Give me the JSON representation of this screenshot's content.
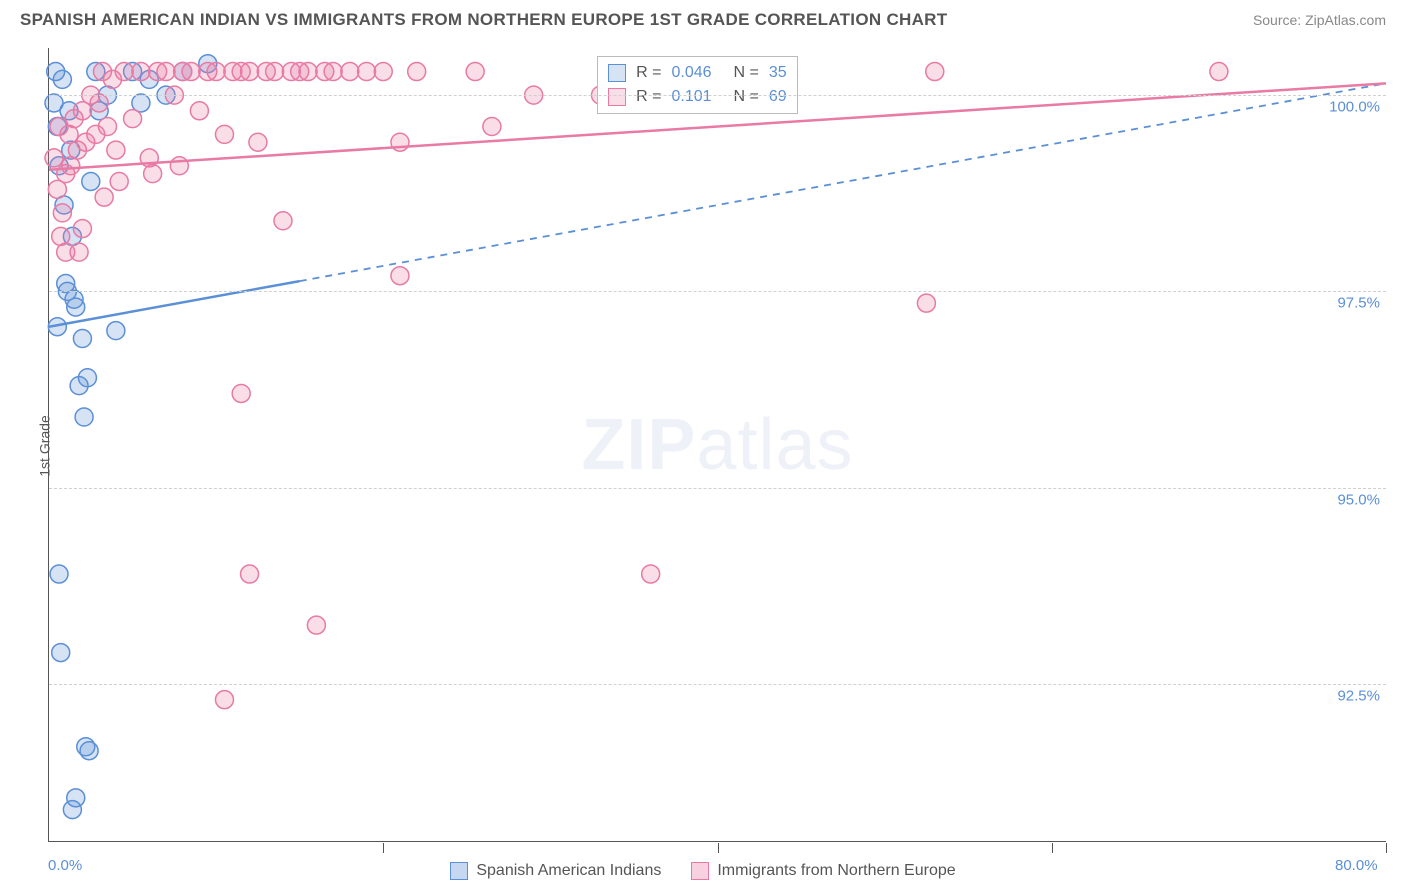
{
  "header": {
    "title": "SPANISH AMERICAN INDIAN VS IMMIGRANTS FROM NORTHERN EUROPE 1ST GRADE CORRELATION CHART",
    "source": "Source: ZipAtlas.com"
  },
  "chart": {
    "type": "scatter",
    "ylabel": "1st Grade",
    "watermark_bold": "ZIP",
    "watermark_rest": "atlas",
    "x": {
      "min": 0,
      "max": 80,
      "ticks": [
        0,
        20,
        40,
        60,
        80
      ],
      "tick_labels_shown": {
        "0": "0.0%",
        "80": "80.0%"
      }
    },
    "y": {
      "min": 90.5,
      "max": 100.6,
      "ticks": [
        92.5,
        95.0,
        97.5,
        100.0
      ],
      "tick_labels": [
        "92.5%",
        "95.0%",
        "97.5%",
        "100.0%"
      ]
    },
    "grid_color": "#d0d0d0",
    "background_color": "#ffffff",
    "marker_radius": 9,
    "marker_stroke_width": 1.5,
    "marker_fill_opacity": 0.25,
    "series": [
      {
        "name": "Spanish American Indians",
        "color": "#5b8fd6",
        "fill": "rgba(91,143,214,0.25)",
        "R": "0.046",
        "N": "35",
        "trend": {
          "solid_xmax": 15,
          "y_at_x0": 97.05,
          "y_at_xmax": 100.15
        },
        "points": [
          [
            0.3,
            99.9
          ],
          [
            0.4,
            100.3
          ],
          [
            0.5,
            99.6
          ],
          [
            0.6,
            99.1
          ],
          [
            0.8,
            100.2
          ],
          [
            0.9,
            98.6
          ],
          [
            1.0,
            97.6
          ],
          [
            1.1,
            97.5
          ],
          [
            1.2,
            99.8
          ],
          [
            1.3,
            99.3
          ],
          [
            1.4,
            98.2
          ],
          [
            1.5,
            97.4
          ],
          [
            1.6,
            97.3
          ],
          [
            1.8,
            96.3
          ],
          [
            2.0,
            96.9
          ],
          [
            2.1,
            95.9
          ],
          [
            2.3,
            96.4
          ],
          [
            2.5,
            98.9
          ],
          [
            0.5,
            97.05
          ],
          [
            0.6,
            93.9
          ],
          [
            0.7,
            92.9
          ],
          [
            2.2,
            91.7
          ],
          [
            2.4,
            91.65
          ],
          [
            1.6,
            91.05
          ],
          [
            1.4,
            90.9
          ],
          [
            2.8,
            100.3
          ],
          [
            3.0,
            99.8
          ],
          [
            3.5,
            100.0
          ],
          [
            4.0,
            97.0
          ],
          [
            5.0,
            100.3
          ],
          [
            5.5,
            99.9
          ],
          [
            6.0,
            100.2
          ],
          [
            7.0,
            100.0
          ],
          [
            8.0,
            100.3
          ],
          [
            9.5,
            100.4
          ]
        ]
      },
      {
        "name": "Immigrants from Northern Europe",
        "color": "#e87aa4",
        "fill": "rgba(232,122,164,0.25)",
        "R": "0.101",
        "N": "69",
        "trend": {
          "solid_xmax": 80,
          "y_at_x0": 99.05,
          "y_at_xmax": 100.15
        },
        "points": [
          [
            0.3,
            99.2
          ],
          [
            0.5,
            98.8
          ],
          [
            0.7,
            98.2
          ],
          [
            0.8,
            98.5
          ],
          [
            1.0,
            99.0
          ],
          [
            1.2,
            99.5
          ],
          [
            1.3,
            99.1
          ],
          [
            1.5,
            99.7
          ],
          [
            1.7,
            99.3
          ],
          [
            1.8,
            98.0
          ],
          [
            2.0,
            99.8
          ],
          [
            2.2,
            99.4
          ],
          [
            2.5,
            100.0
          ],
          [
            2.8,
            99.5
          ],
          [
            3.0,
            99.9
          ],
          [
            3.2,
            100.3
          ],
          [
            3.5,
            99.6
          ],
          [
            3.8,
            100.2
          ],
          [
            4.0,
            99.3
          ],
          [
            4.5,
            100.3
          ],
          [
            5.0,
            99.7
          ],
          [
            5.5,
            100.3
          ],
          [
            6.0,
            99.2
          ],
          [
            6.5,
            100.3
          ],
          [
            7.0,
            100.3
          ],
          [
            7.5,
            100.0
          ],
          [
            8.0,
            100.3
          ],
          [
            8.5,
            100.3
          ],
          [
            9.0,
            99.8
          ],
          [
            9.5,
            100.3
          ],
          [
            10.0,
            100.3
          ],
          [
            10.5,
            99.5
          ],
          [
            11.0,
            100.3
          ],
          [
            11.5,
            100.3
          ],
          [
            12.0,
            100.3
          ],
          [
            12.5,
            99.4
          ],
          [
            13.0,
            100.3
          ],
          [
            13.5,
            100.3
          ],
          [
            14.0,
            98.4
          ],
          [
            14.5,
            100.3
          ],
          [
            15.0,
            100.3
          ],
          [
            15.5,
            100.3
          ],
          [
            16.5,
            100.3
          ],
          [
            17.0,
            100.3
          ],
          [
            18.0,
            100.3
          ],
          [
            19.0,
            100.3
          ],
          [
            20.0,
            100.3
          ],
          [
            21.0,
            99.4
          ],
          [
            22.0,
            100.3
          ],
          [
            25.5,
            100.3
          ],
          [
            26.5,
            99.6
          ],
          [
            21.0,
            97.7
          ],
          [
            11.5,
            96.2
          ],
          [
            12.0,
            93.9
          ],
          [
            10.5,
            92.3
          ],
          [
            16.0,
            93.25
          ],
          [
            29.0,
            100.0
          ],
          [
            33.0,
            100.0
          ],
          [
            36.0,
            93.9
          ],
          [
            52.5,
            97.35
          ],
          [
            53.0,
            100.3
          ],
          [
            70.0,
            100.3
          ],
          [
            2.0,
            98.3
          ],
          [
            3.3,
            98.7
          ],
          [
            4.2,
            98.9
          ],
          [
            6.2,
            99.0
          ],
          [
            7.8,
            99.1
          ],
          [
            1.0,
            98.0
          ],
          [
            0.6,
            99.6
          ]
        ]
      }
    ],
    "stats_box": {
      "left_pct": 41.0,
      "top_pct": 1.0
    },
    "legend": {
      "items": [
        {
          "label": "Spanish American Indians",
          "color": "#5b8fd6",
          "fill": "rgba(91,143,214,0.35)"
        },
        {
          "label": "Immigrants from Northern Europe",
          "color": "#e87aa4",
          "fill": "rgba(232,122,164,0.35)"
        }
      ]
    }
  }
}
